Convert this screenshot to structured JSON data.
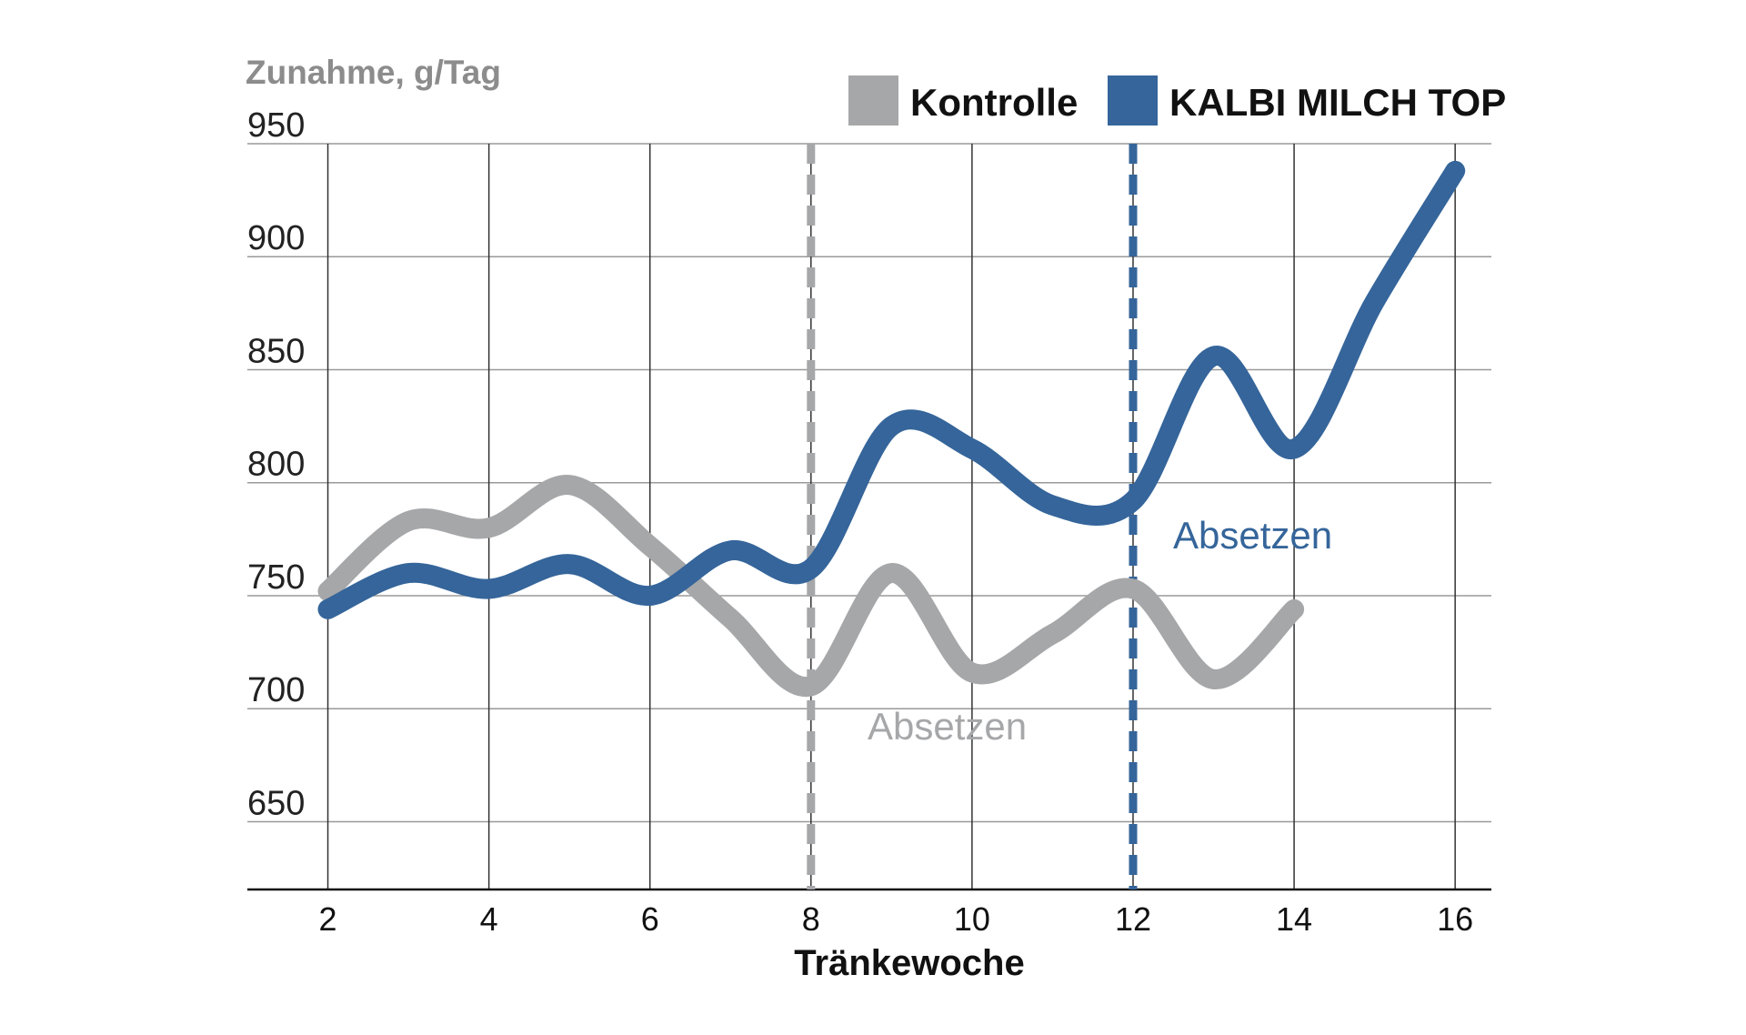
{
  "chart_data": {
    "type": "line",
    "ylabel": "Zunahme, g/Tag",
    "xlabel": "Tränkewoche",
    "ylim": [
      620,
      950
    ],
    "xlim": [
      1,
      16.45
    ],
    "yticks": [
      650,
      700,
      750,
      800,
      850,
      900,
      950
    ],
    "xticks": [
      2,
      4,
      6,
      8,
      10,
      12,
      14,
      16
    ],
    "grid": true,
    "legend_position": "top-right",
    "series": [
      {
        "name": "Kontrolle",
        "color": "#a6a7a9",
        "x": [
          2,
          3,
          4,
          5,
          6,
          7,
          8,
          9,
          10,
          11,
          12,
          13,
          14
        ],
        "values": [
          752,
          783,
          780,
          799,
          772,
          740,
          710,
          760,
          716,
          733,
          753,
          713,
          744
        ]
      },
      {
        "name": "KALBI MILCH TOP",
        "color": "#35659a",
        "x": [
          2,
          3,
          4,
          5,
          6,
          7,
          8,
          9,
          10,
          11,
          12,
          13,
          14,
          15,
          16
        ],
        "values": [
          744,
          760,
          753,
          764,
          750,
          770,
          762,
          825,
          815,
          790,
          792,
          856,
          815,
          880,
          938
        ]
      }
    ],
    "annotations": [
      {
        "text": "Absetzen",
        "x": 8,
        "series": "Kontrolle",
        "color": "#a6a7a9"
      },
      {
        "text": "Absetzen",
        "x": 12,
        "series": "KALBI MILCH TOP",
        "color": "#35659a"
      }
    ]
  }
}
